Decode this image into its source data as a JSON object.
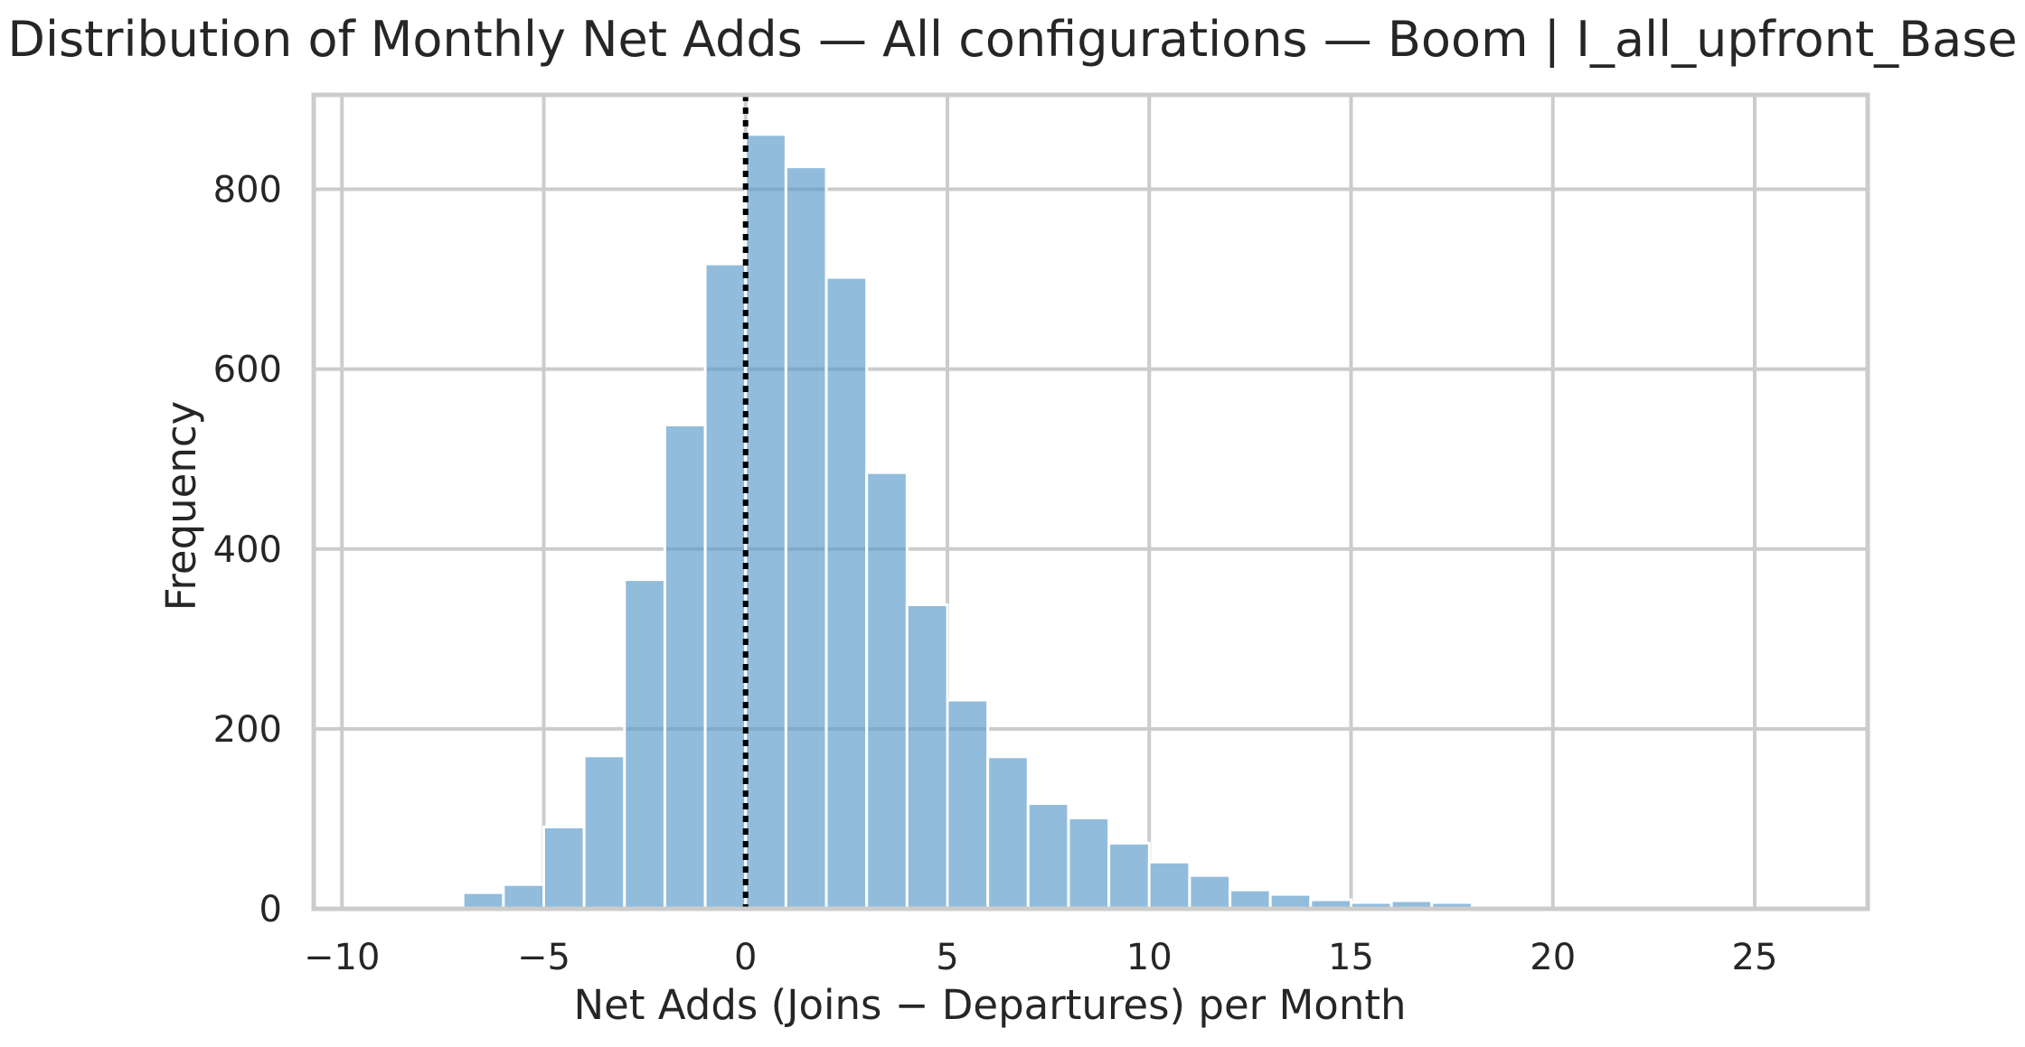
{
  "chart_data": {
    "type": "bar",
    "title": "Distribution of Monthly Net Adds — All configurations — Boom | I_all_upfront_Base",
    "xlabel": "Net Adds (Joins − Departures) per Month",
    "ylabel": "Frequency",
    "xlim": [
      -10.7,
      27.8
    ],
    "ylim": [
      0,
      905
    ],
    "x_ticks": [
      -10,
      -5,
      0,
      5,
      10,
      15,
      20,
      25
    ],
    "x_tick_labels": [
      "−10",
      "−5",
      "0",
      "5",
      "10",
      "15",
      "20",
      "25"
    ],
    "y_ticks": [
      0,
      200,
      400,
      600,
      800
    ],
    "y_tick_labels": [
      "0",
      "200",
      "400",
      "600",
      "800"
    ],
    "bin_width": 1,
    "bins": [
      {
        "x0": -10,
        "count": 1
      },
      {
        "x0": -9,
        "count": 1
      },
      {
        "x0": -8,
        "count": 4
      },
      {
        "x0": -7,
        "count": 18
      },
      {
        "x0": -6,
        "count": 27
      },
      {
        "x0": -5,
        "count": 91
      },
      {
        "x0": -4,
        "count": 170
      },
      {
        "x0": -3,
        "count": 366
      },
      {
        "x0": -2,
        "count": 538
      },
      {
        "x0": -1,
        "count": 717
      },
      {
        "x0": 0,
        "count": 861
      },
      {
        "x0": 1,
        "count": 825
      },
      {
        "x0": 2,
        "count": 702
      },
      {
        "x0": 3,
        "count": 485
      },
      {
        "x0": 4,
        "count": 338
      },
      {
        "x0": 5,
        "count": 232
      },
      {
        "x0": 6,
        "count": 169
      },
      {
        "x0": 7,
        "count": 117
      },
      {
        "x0": 8,
        "count": 101
      },
      {
        "x0": 9,
        "count": 73
      },
      {
        "x0": 10,
        "count": 52
      },
      {
        "x0": 11,
        "count": 37
      },
      {
        "x0": 12,
        "count": 21
      },
      {
        "x0": 13,
        "count": 16
      },
      {
        "x0": 14,
        "count": 10
      },
      {
        "x0": 15,
        "count": 7
      },
      {
        "x0": 16,
        "count": 9
      },
      {
        "x0": 17,
        "count": 7
      },
      {
        "x0": 18,
        "count": 2
      },
      {
        "x0": 19,
        "count": 1
      },
      {
        "x0": 20,
        "count": 1
      },
      {
        "x0": 21,
        "count": 1
      },
      {
        "x0": 22,
        "count": 1
      },
      {
        "x0": 23,
        "count": 1
      },
      {
        "x0": 24,
        "count": 0
      },
      {
        "x0": 25,
        "count": 1
      },
      {
        "x0": 26,
        "count": 1
      }
    ],
    "bar_color": "#5b9bcb",
    "bar_opacity": 0.67,
    "reference_line": {
      "x": 0,
      "style": "dotted",
      "color": "#000000"
    },
    "grid": true,
    "legend": "none"
  }
}
